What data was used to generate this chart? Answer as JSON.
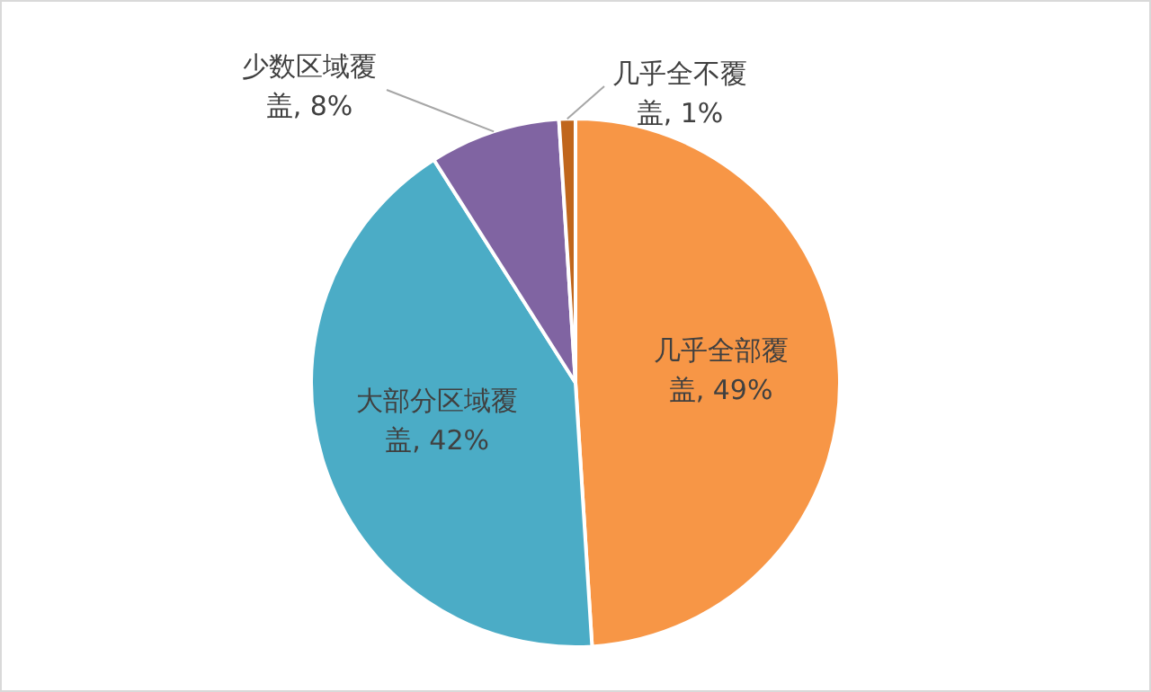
{
  "chart_data": {
    "type": "pie",
    "categories": [
      "几乎全部覆盖",
      "大部分区域覆盖",
      "少数区域覆盖",
      "几乎全不覆盖"
    ],
    "values": [
      49,
      42,
      8,
      1
    ],
    "colors": [
      "#f79646",
      "#4bacc6",
      "#8064a2",
      "#c0661c"
    ],
    "value_labels": [
      ", 49%",
      ", 42%",
      ", 8%",
      ", 1%"
    ],
    "legend": false
  }
}
